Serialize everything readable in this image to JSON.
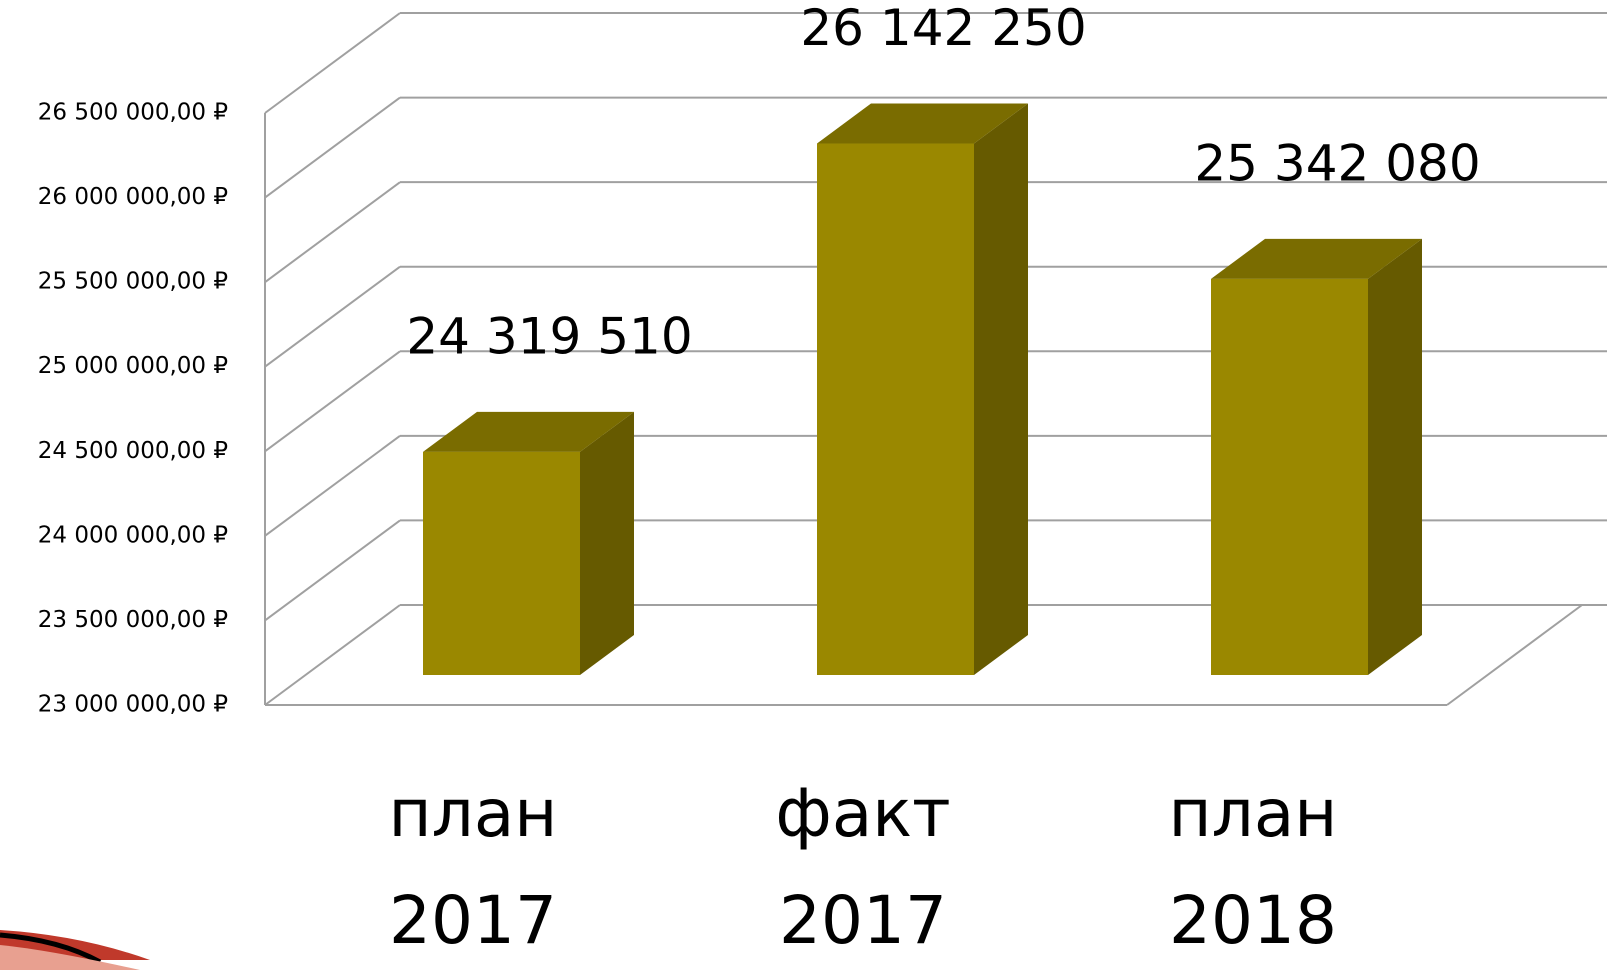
{
  "chart_data": {
    "type": "bar3d",
    "categories": [
      [
        "план",
        "2017"
      ],
      [
        "факт",
        "2017"
      ],
      [
        "план",
        "2018"
      ]
    ],
    "values": [
      24319510,
      26142250,
      25342080
    ],
    "value_labels": [
      "24 319 510",
      "26 142 250",
      "25 342 080"
    ],
    "color": "#9a8800",
    "ylim": [
      23000000,
      26500000
    ],
    "yticks": [
      {
        "value": 23000000,
        "label": "23 000 000,00 ₽"
      },
      {
        "value": 23500000,
        "label": "23 500 000,00 ₽"
      },
      {
        "value": 24000000,
        "label": "24 000 000,00 ₽"
      },
      {
        "value": 24500000,
        "label": "24 500 000,00 ₽"
      },
      {
        "value": 25000000,
        "label": "25 000 000,00 ₽"
      },
      {
        "value": 25500000,
        "label": "25 500 000,00 ₽"
      },
      {
        "value": 26000000,
        "label": "26 000 000,00 ₽"
      },
      {
        "value": 26500000,
        "label": "26 500 000,00 ₽"
      }
    ],
    "grid": true
  }
}
